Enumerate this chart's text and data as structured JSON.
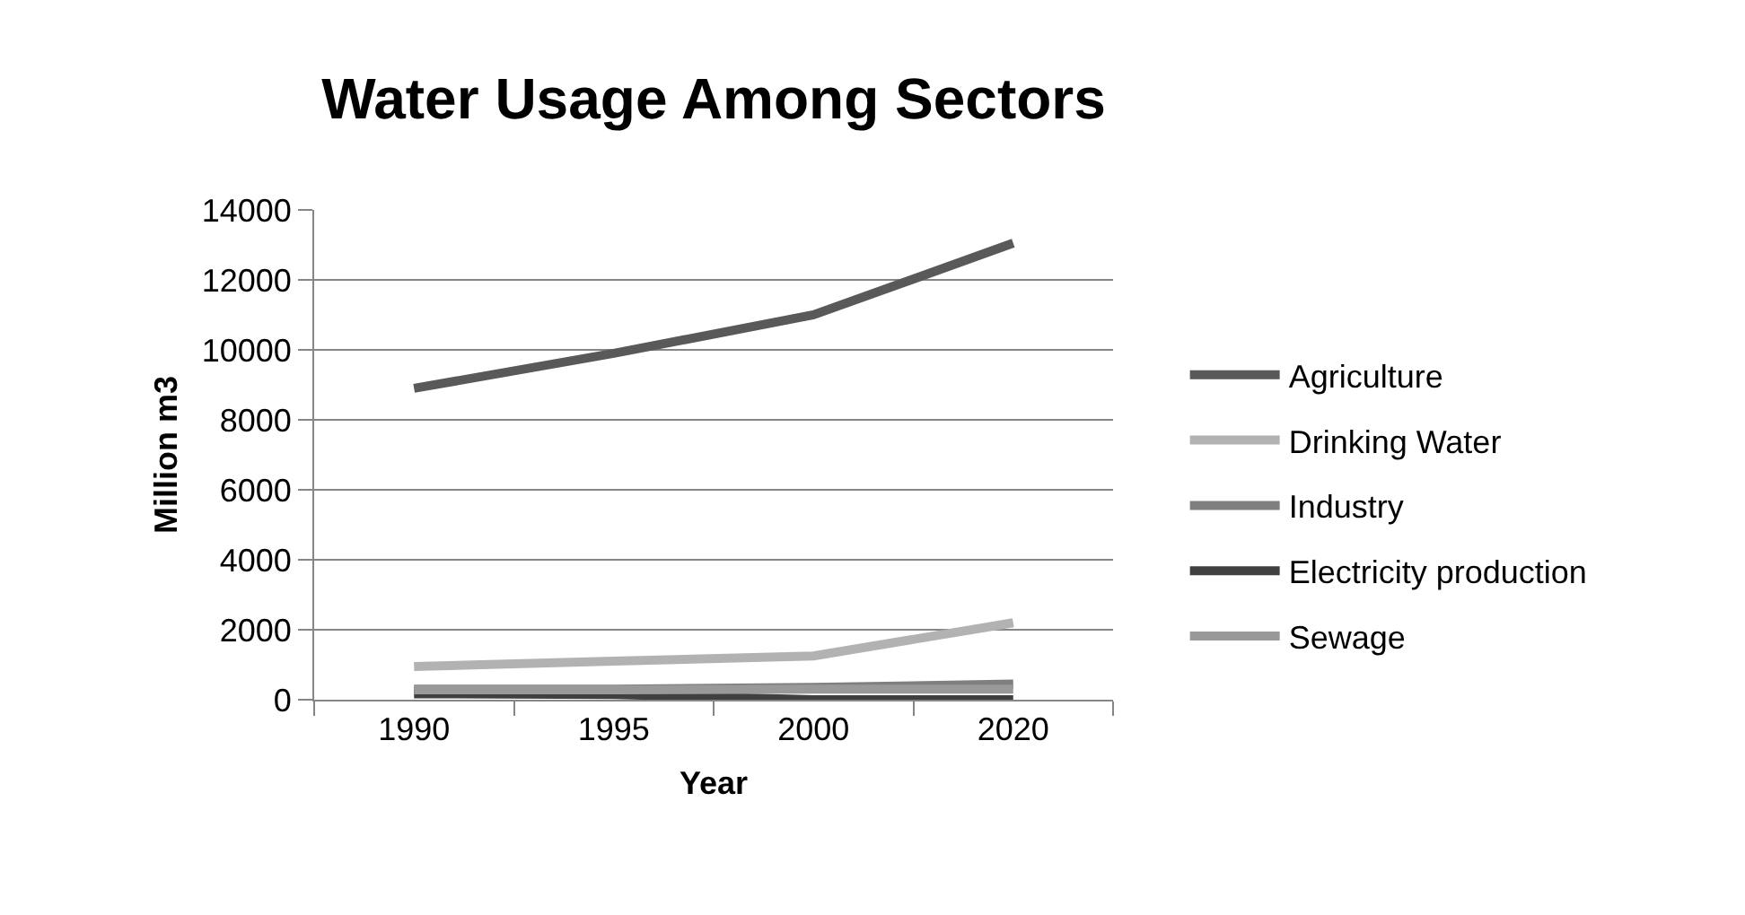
{
  "chart_data": {
    "type": "line",
    "title": "Water Usage Among Sectors",
    "xlabel": "Year",
    "ylabel": "Million m3",
    "categories": [
      "1990",
      "1995",
      "2000",
      "2020"
    ],
    "ylim": [
      0,
      14000
    ],
    "yticks": [
      0,
      2000,
      4000,
      6000,
      8000,
      10000,
      12000,
      14000
    ],
    "grid": "y",
    "legend": "right",
    "line_style": "solid",
    "series": [
      {
        "name": "Agriculture",
        "color": "#595959",
        "values": [
          8900,
          9900,
          11000,
          13050
        ]
      },
      {
        "name": "Drinking Water",
        "color": "#b2b2b2",
        "values": [
          950,
          1100,
          1250,
          2200
        ]
      },
      {
        "name": "Industry",
        "color": "#7f7f7f",
        "values": [
          300,
          300,
          350,
          450
        ]
      },
      {
        "name": "Electricity production",
        "color": "#404040",
        "values": [
          170,
          150,
          0,
          0
        ]
      },
      {
        "name": "Sewage",
        "color": "#999999",
        "values": [
          280,
          280,
          300,
          300
        ]
      }
    ]
  }
}
